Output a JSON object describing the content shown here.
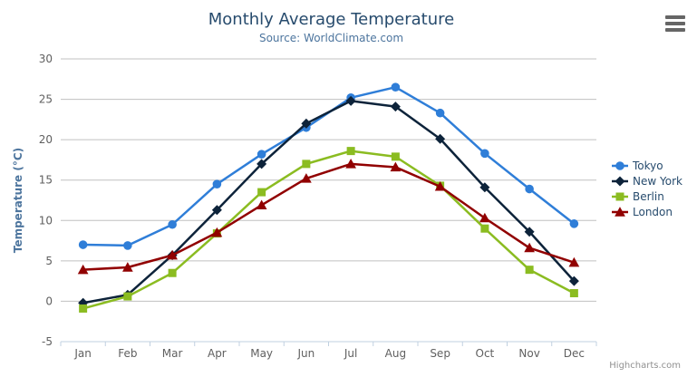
{
  "header": {
    "title": "Monthly Average Temperature",
    "subtitle": "Source: WorldClimate.com"
  },
  "credits": "Highcharts.com",
  "colors": {
    "title": "#274b6d",
    "subtitle": "#4d759e",
    "axis_label": "#606060",
    "axis_title": "#4d759e",
    "grid": "#c0c0c0",
    "axis_line": "#c0d0e0",
    "legend_text": "#274b6d",
    "credits_text": "#909090",
    "menu_icon": "#666666"
  },
  "chart_data": {
    "type": "line",
    "title": "Monthly Average Temperature",
    "subtitle": "Source: WorldClimate.com",
    "xlabel": "",
    "ylabel": "Temperature (°C)",
    "ylim": [
      -5,
      30
    ],
    "ytick_interval": 5,
    "grid": "horizontal",
    "legend_position": "right",
    "categories": [
      "Jan",
      "Feb",
      "Mar",
      "Apr",
      "May",
      "Jun",
      "Jul",
      "Aug",
      "Sep",
      "Oct",
      "Nov",
      "Dec"
    ],
    "series": [
      {
        "name": "Tokyo",
        "color": "#2f7ed8",
        "marker": "circle",
        "values": [
          7.0,
          6.9,
          9.5,
          14.5,
          18.2,
          21.5,
          25.2,
          26.5,
          23.3,
          18.3,
          13.9,
          9.6
        ]
      },
      {
        "name": "New York",
        "color": "#0d233a",
        "marker": "diamond",
        "values": [
          -0.2,
          0.8,
          5.7,
          11.3,
          17.0,
          22.0,
          24.8,
          24.1,
          20.1,
          14.1,
          8.6,
          2.5
        ]
      },
      {
        "name": "Berlin",
        "color": "#8bbc21",
        "marker": "square",
        "values": [
          -0.9,
          0.6,
          3.5,
          8.4,
          13.5,
          17.0,
          18.6,
          17.9,
          14.3,
          9.0,
          3.9,
          1.0
        ]
      },
      {
        "name": "London",
        "color": "#910000",
        "marker": "triangle",
        "values": [
          3.9,
          4.2,
          5.7,
          8.5,
          11.9,
          15.2,
          17.0,
          16.6,
          14.2,
          10.3,
          6.6,
          4.8
        ]
      }
    ]
  }
}
